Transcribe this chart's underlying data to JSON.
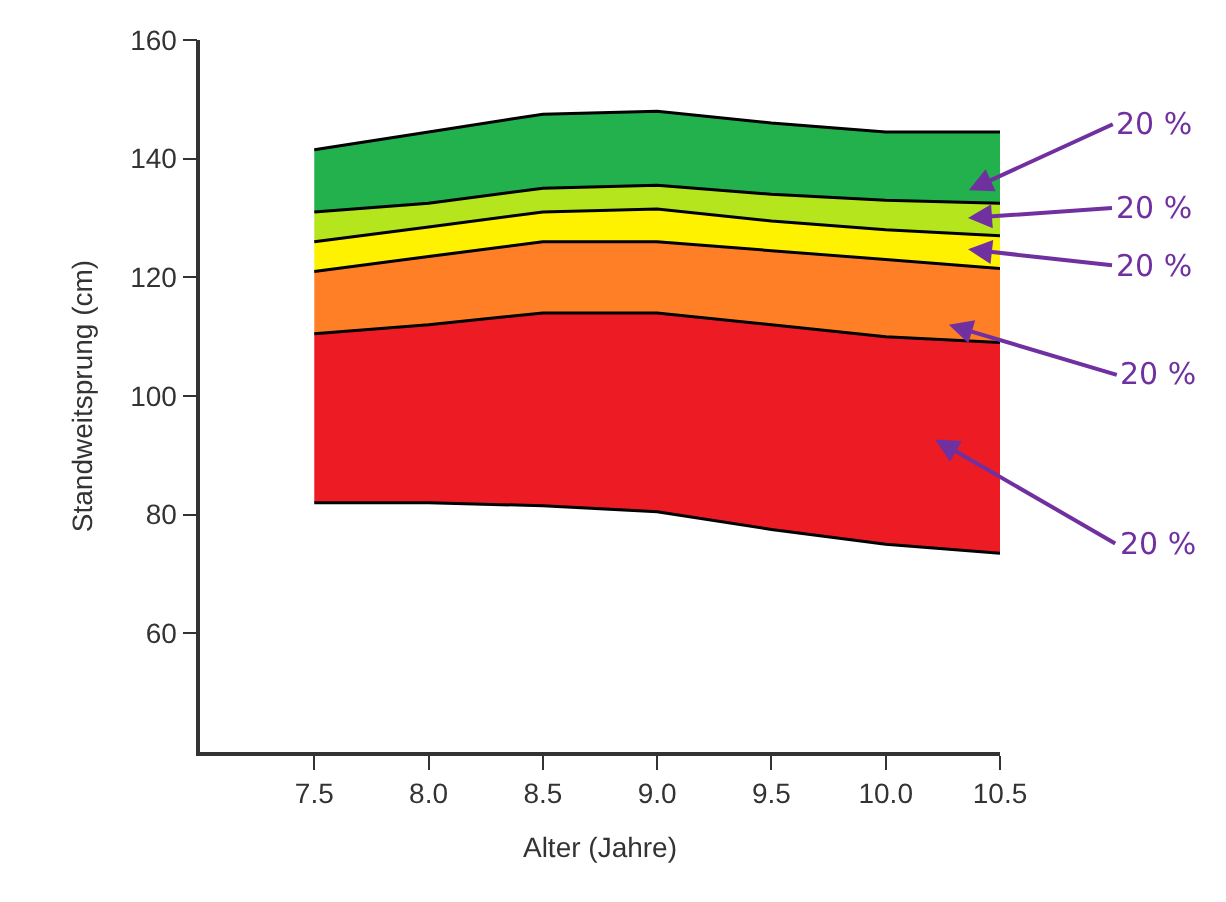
{
  "chart_data": {
    "type": "area",
    "xlabel": "Alter (Jahre)",
    "ylabel": "Standweitsprung (cm)",
    "x": [
      7.5,
      8.0,
      8.5,
      9.0,
      9.5,
      10.0,
      10.5
    ],
    "series": [
      {
        "type": "line",
        "color": "#000000",
        "values": [
          82,
          82,
          81.5,
          80.5,
          77.5,
          75,
          73.5
        ]
      },
      {
        "color": "#ed1c24",
        "values": [
          110.5,
          112,
          114,
          114,
          112,
          110,
          109
        ]
      },
      {
        "color": "#ff7f27",
        "values": [
          121,
          123.5,
          126,
          126,
          124.5,
          123,
          121.5
        ]
      },
      {
        "color": "#fff200",
        "values": [
          126,
          128.5,
          131,
          131.5,
          129.5,
          128,
          127
        ]
      },
      {
        "color": "#b5e61d",
        "values": [
          131,
          132.5,
          135,
          135.5,
          134,
          133,
          132.5
        ]
      },
      {
        "color": "#22b14c",
        "values": [
          141.5,
          144.5,
          147.5,
          148,
          146,
          144.5,
          144.5
        ]
      }
    ],
    "xlim": [
      7.0,
      10.5
    ],
    "xticks": [
      7.5,
      {
        "value": 8,
        "label": "8.0"
      },
      8.5,
      {
        "value": 9,
        "label": "9.0"
      },
      9.5,
      {
        "value": 10,
        "label": "10.0"
      },
      10.5
    ],
    "ylim": [
      40,
      160
    ],
    "yticks": [
      60,
      80,
      100,
      120,
      140,
      160
    ],
    "annotations": [
      "20 %",
      "20 %",
      "20 %",
      "20 %",
      "20 %"
    ]
  }
}
